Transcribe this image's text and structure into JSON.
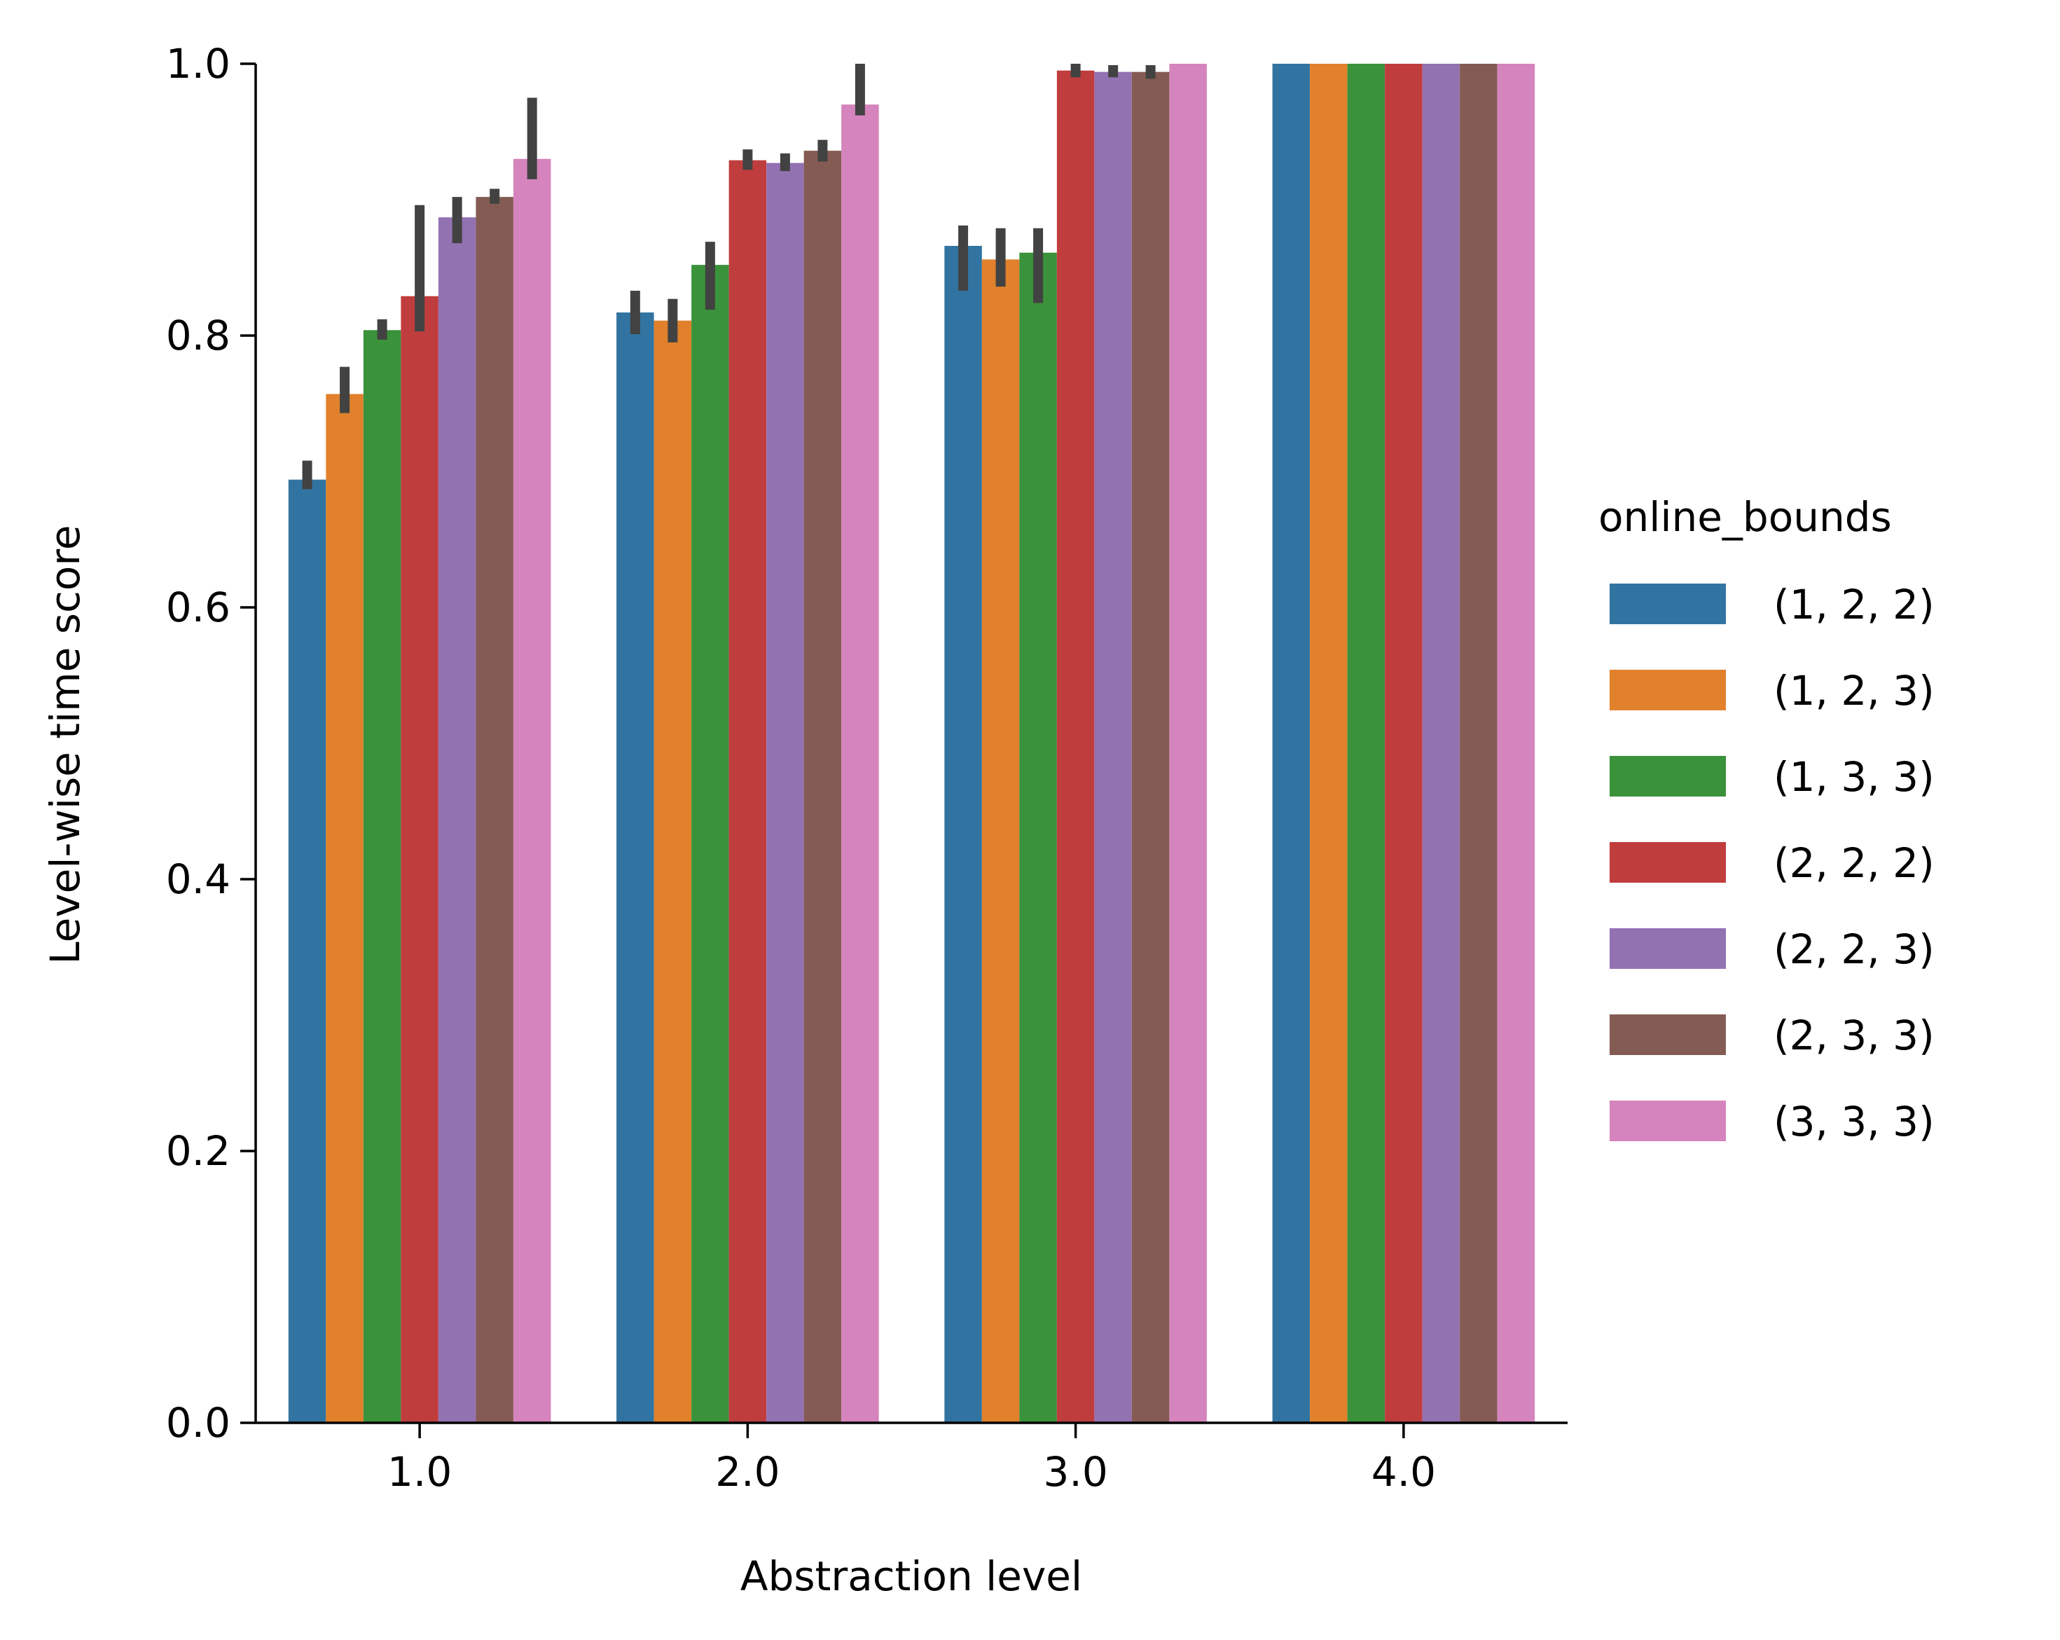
{
  "chart_data": {
    "type": "bar",
    "title": "",
    "xlabel": "Abstraction level",
    "ylabel": "Level-wise time score",
    "categories": [
      "1.0",
      "2.0",
      "3.0",
      "4.0"
    ],
    "ylim": [
      0,
      1.0
    ],
    "yticks": [
      "0.0",
      "0.2",
      "0.4",
      "0.6",
      "0.8",
      "1.0"
    ],
    "grid": false,
    "legend": {
      "title": "online_bounds",
      "placement": "right"
    },
    "series": [
      {
        "name": "(1, 2, 2)",
        "color": "#3274a1",
        "values": [
          0.694,
          0.817,
          0.866,
          1.0
        ],
        "ci": [
          [
            0.687,
            0.708
          ],
          [
            0.801,
            0.833
          ],
          [
            0.833,
            0.881
          ],
          [
            1.0,
            1.0
          ]
        ]
      },
      {
        "name": "(1, 2, 3)",
        "color": "#e1812c",
        "values": [
          0.757,
          0.811,
          0.856,
          1.0
        ],
        "ci": [
          [
            0.743,
            0.777
          ],
          [
            0.795,
            0.827
          ],
          [
            0.836,
            0.879
          ],
          [
            1.0,
            1.0
          ]
        ]
      },
      {
        "name": "(1, 3, 3)",
        "color": "#3a923a",
        "values": [
          0.804,
          0.852,
          0.861,
          1.0
        ],
        "ci": [
          [
            0.797,
            0.812
          ],
          [
            0.819,
            0.869
          ],
          [
            0.824,
            0.879
          ],
          [
            1.0,
            1.0
          ]
        ]
      },
      {
        "name": "(2, 2, 2)",
        "color": "#c03d3e",
        "values": [
          0.829,
          0.929,
          0.995,
          1.0
        ],
        "ci": [
          [
            0.803,
            0.896
          ],
          [
            0.922,
            0.937
          ],
          [
            0.99,
            1.0
          ],
          [
            1.0,
            1.0
          ]
        ]
      },
      {
        "name": "(2, 2, 3)",
        "color": "#9372b2",
        "values": [
          0.887,
          0.927,
          0.994,
          1.0
        ],
        "ci": [
          [
            0.868,
            0.902
          ],
          [
            0.921,
            0.934
          ],
          [
            0.99,
            0.999
          ],
          [
            1.0,
            1.0
          ]
        ]
      },
      {
        "name": "(2, 3, 3)",
        "color": "#845b53",
        "values": [
          0.902,
          0.936,
          0.994,
          1.0
        ],
        "ci": [
          [
            0.897,
            0.908
          ],
          [
            0.928,
            0.944
          ],
          [
            0.989,
            0.999
          ],
          [
            1.0,
            1.0
          ]
        ]
      },
      {
        "name": "(3, 3, 3)",
        "color": "#d684bd",
        "values": [
          0.93,
          0.97,
          1.0,
          1.0
        ],
        "ci": [
          [
            0.915,
            0.975
          ],
          [
            0.962,
            1.0
          ],
          [
            1.0,
            1.0
          ],
          [
            1.0,
            1.0
          ]
        ]
      }
    ]
  }
}
